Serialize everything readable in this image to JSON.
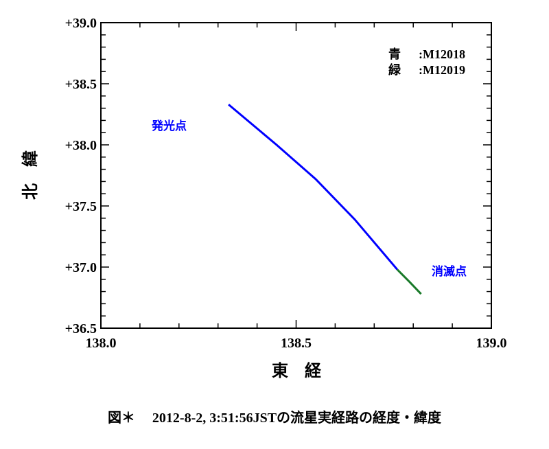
{
  "chart_data": {
    "type": "line",
    "title": "",
    "xlabel": "東　経",
    "ylabel": "北　緯",
    "xlim": [
      138.0,
      139.0
    ],
    "ylim": [
      36.5,
      39.0
    ],
    "x_ticks": [
      "138.0",
      "138.5",
      "139.0"
    ],
    "y_ticks": [
      "+36.5",
      "+37.0",
      "+37.5",
      "+38.0",
      "+38.5",
      "+39.0"
    ],
    "grid": false,
    "legend": [
      {
        "label": "青",
        "value": ":M12018"
      },
      {
        "label": "緑",
        "value": ":M12019"
      }
    ],
    "legend_position": "top-right",
    "annotations": [
      {
        "text": "発光点",
        "x": 138.21,
        "y": 38.17
      },
      {
        "text": "消滅点",
        "x": 138.95,
        "y": 36.98
      }
    ],
    "series": [
      {
        "name": "M12018",
        "color": "#0000ff",
        "x": [
          138.327,
          138.45,
          138.55,
          138.65,
          138.759
        ],
        "y": [
          38.33,
          38.0,
          37.72,
          37.39,
          36.98
        ]
      },
      {
        "name": "M12019",
        "color": "#1a7a2a",
        "x": [
          138.759,
          138.79,
          138.82
        ],
        "y": [
          36.98,
          36.88,
          36.78
        ]
      }
    ]
  },
  "caption": "図＊　 2012-8-2, 3:51:56JSTの流星実経路の経度・緯度"
}
